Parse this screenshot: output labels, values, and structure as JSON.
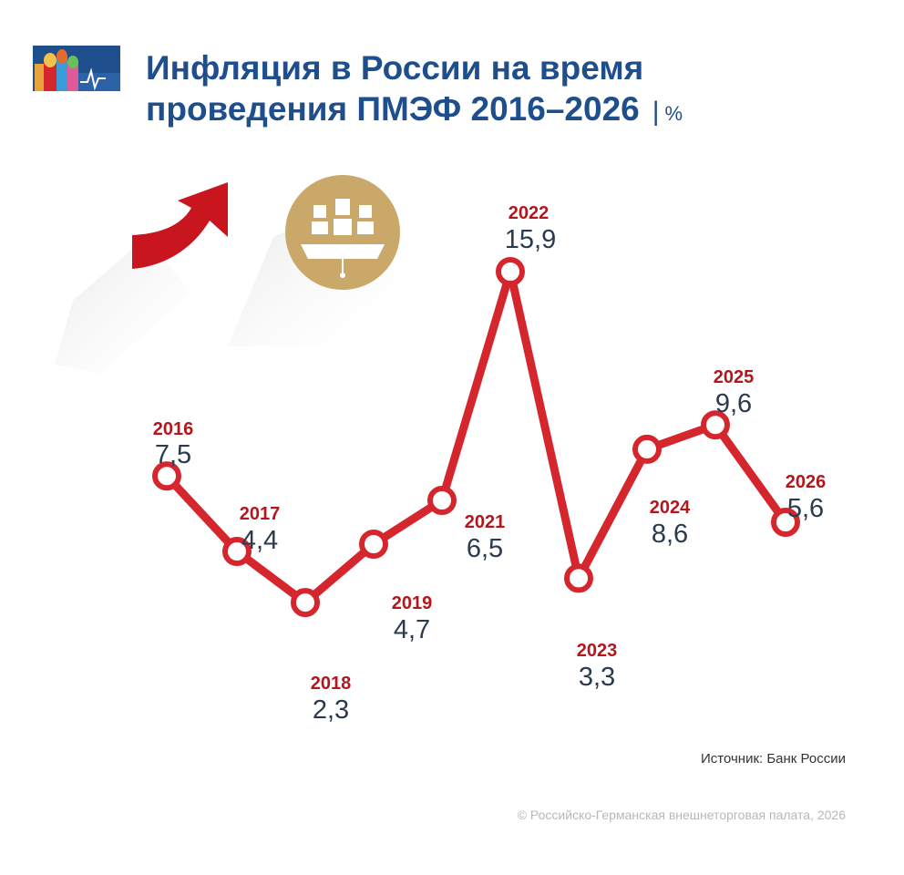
{
  "title": {
    "line1": "Инфляция в России на время",
    "line2": "проведения ПМЭФ 2016–2026",
    "separator": "|",
    "unit": "%"
  },
  "icons": {
    "logo": "kremlin-cathedral-logo-icon",
    "arrow": "red-upward-arrow-icon",
    "emblem": "ship-emblem-icon"
  },
  "colors": {
    "title": "#1f4e8c",
    "line": "#d6262d",
    "year_label": "#b3171e",
    "value_label": "#2a3a4f",
    "emblem": "#c9a86a"
  },
  "chart_data": {
    "type": "line",
    "x": [
      "2016",
      "2017",
      "2018",
      "2019",
      "2021",
      "2022",
      "2023",
      "2024",
      "2025",
      "2026"
    ],
    "values": [
      7.5,
      4.4,
      2.3,
      4.7,
      6.5,
      15.9,
      3.3,
      8.6,
      9.6,
      5.6
    ],
    "value_labels": [
      "7,5",
      "4,4",
      "2,3",
      "4,7",
      "6,5",
      "15,9",
      "3,3",
      "8,6",
      "9,6",
      "5,6"
    ],
    "unit": "%",
    "grid": false,
    "legend": "none"
  },
  "footer": {
    "source": "Источник: Банк России",
    "copyright": "© Российско-Германская внешнеторговая палата, 2026"
  }
}
